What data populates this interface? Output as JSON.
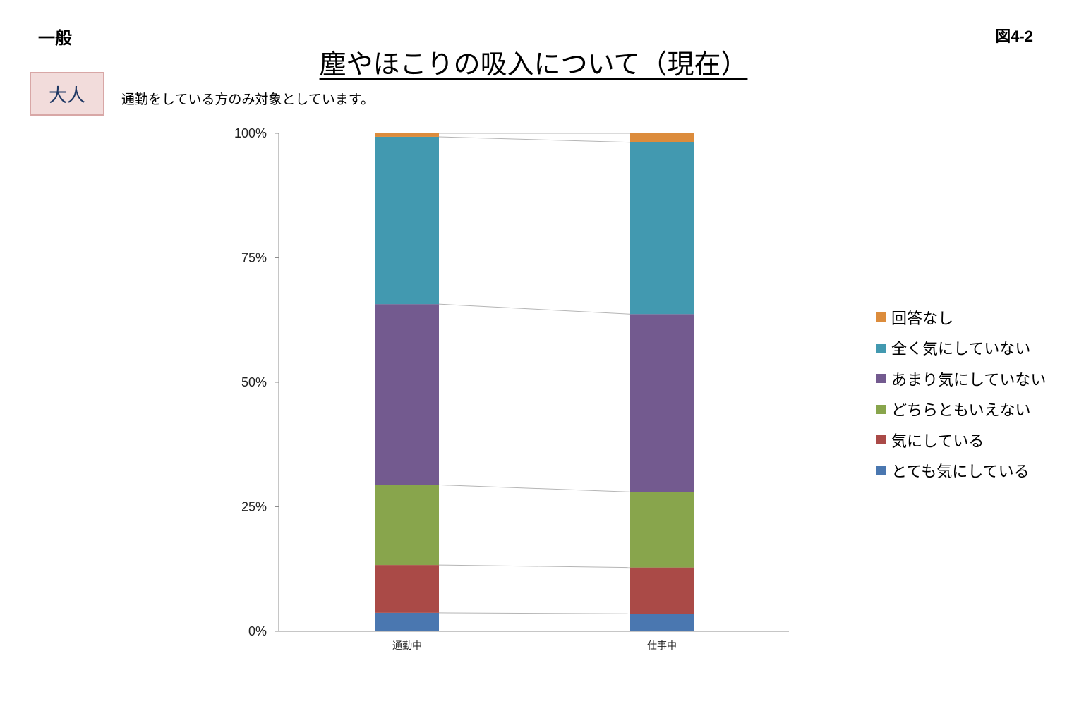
{
  "header": {
    "category": "一般",
    "figure_no": "図4-2",
    "title": "塵やほこりの吸入について（現在）",
    "badge": "大人",
    "note": "通勤をしている方のみ対象としています。"
  },
  "chart_data": {
    "type": "bar",
    "stacked": true,
    "percent": true,
    "title": "塵やほこりの吸入について（現在）",
    "categories": [
      "通勤中",
      "仕事中"
    ],
    "ylim": [
      0,
      100
    ],
    "yticks": [
      "0%",
      "25%",
      "50%",
      "75%",
      "100%"
    ],
    "ytick_values": [
      0,
      25,
      50,
      75,
      100
    ],
    "legend_position": "right",
    "series_lines": true,
    "series": [
      {
        "name": "とても気にしている",
        "color": "#4a77b0",
        "values": [
          3.7,
          3.5
        ]
      },
      {
        "name": "気にしている",
        "color": "#aa4a47",
        "values": [
          9.6,
          9.3
        ]
      },
      {
        "name": "どちらともいえない",
        "color": "#88a54c",
        "values": [
          16.1,
          15.2
        ]
      },
      {
        "name": "あまり気にしていない",
        "color": "#735a8f",
        "values": [
          36.3,
          35.7
        ]
      },
      {
        "name": "全く気にしていない",
        "color": "#4299b0",
        "values": [
          33.6,
          34.5
        ]
      },
      {
        "name": "回答なし",
        "color": "#dc8c3c",
        "values": [
          0.7,
          1.8
        ]
      }
    ]
  }
}
